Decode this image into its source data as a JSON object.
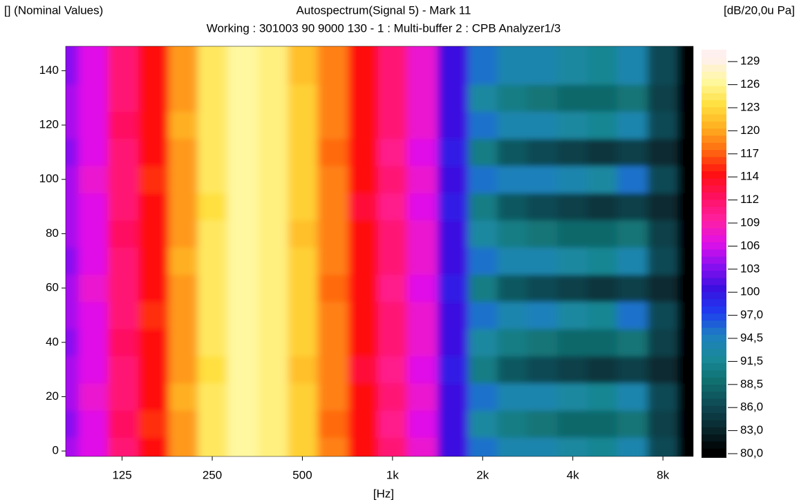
{
  "chart_data": {
    "type": "heatmap",
    "corner_label": "[] (Nominal Values)",
    "title": "Autospectrum(Signal 5) - Mark 11",
    "subtitle": "Working : 301003 90 9000 130 - 1 : Multi-buffer 2 : CPB Analyzer1/3",
    "unit_label": "[dB/20,0u Pa]",
    "x_label": "[Hz]",
    "log_x": true,
    "x": [
      80,
      100,
      125,
      160,
      200,
      250,
      315,
      400,
      500,
      630,
      800,
      1000,
      1250,
      1600,
      2000,
      2500,
      3150,
      4000,
      5000,
      6300,
      8000,
      10000
    ],
    "y": [
      0,
      10,
      20,
      30,
      40,
      50,
      60,
      70,
      80,
      90,
      100,
      110,
      120,
      130,
      140
    ],
    "xlim": [
      81,
      10100
    ],
    "ylim": [
      -2,
      149
    ],
    "xticks": [
      125,
      250,
      500,
      {
        "value": 1000,
        "label": "1k"
      },
      {
        "value": 2000,
        "label": "2k"
      },
      {
        "value": 4000,
        "label": "4k"
      },
      {
        "value": 8000,
        "label": "8k"
      }
    ],
    "yticks": [
      0,
      20,
      40,
      60,
      80,
      100,
      120,
      140
    ],
    "z": [
      [
        104,
        106,
        111,
        114,
        119,
        124,
        126,
        125,
        122,
        118,
        114,
        111,
        107,
        100,
        95,
        93,
        93,
        92,
        91,
        93,
        86,
        80
      ],
      [
        103,
        106,
        112,
        115,
        119,
        124,
        126,
        125,
        122,
        117,
        114,
        110,
        106,
        100,
        92,
        90,
        89,
        88,
        88,
        89,
        85,
        80
      ],
      [
        104,
        107,
        111,
        114,
        120,
        124,
        126,
        125,
        122,
        118,
        114,
        111,
        107,
        100,
        95,
        93,
        93,
        92,
        91,
        93,
        86,
        80
      ],
      [
        104,
        106,
        111,
        114,
        119,
        123,
        126,
        125,
        121,
        118,
        113,
        110,
        106,
        99,
        90,
        87,
        86,
        85,
        84,
        85,
        83,
        80
      ],
      [
        103,
        106,
        112,
        114,
        119,
        124,
        126,
        125,
        122,
        118,
        114,
        111,
        107,
        100,
        92,
        90,
        89,
        88,
        88,
        89,
        85,
        80
      ],
      [
        104,
        106,
        111,
        115,
        119,
        124,
        126,
        125,
        122,
        118,
        114,
        111,
        107,
        100,
        95,
        93,
        94,
        92,
        91,
        95,
        86,
        80
      ],
      [
        104,
        107,
        111,
        114,
        119,
        124,
        126,
        125,
        122,
        117,
        114,
        110,
        106,
        99,
        90,
        87,
        86,
        85,
        84,
        85,
        83,
        80
      ],
      [
        103,
        106,
        111,
        114,
        120,
        124,
        126,
        125,
        122,
        118,
        114,
        111,
        107,
        100,
        95,
        93,
        93,
        92,
        91,
        93,
        86,
        80
      ],
      [
        104,
        106,
        112,
        114,
        119,
        124,
        126,
        125,
        121,
        118,
        114,
        111,
        107,
        100,
        92,
        90,
        89,
        88,
        88,
        89,
        85,
        80
      ],
      [
        104,
        106,
        111,
        114,
        119,
        123,
        126,
        125,
        122,
        118,
        113,
        110,
        106,
        99,
        90,
        87,
        86,
        85,
        84,
        85,
        83,
        80
      ],
      [
        104,
        107,
        111,
        115,
        119,
        124,
        126,
        125,
        122,
        118,
        114,
        111,
        107,
        100,
        95,
        94,
        94,
        93,
        92,
        95,
        86,
        80
      ],
      [
        103,
        106,
        111,
        114,
        119,
        124,
        126,
        125,
        122,
        117,
        114,
        110,
        106,
        99,
        90,
        87,
        86,
        85,
        84,
        85,
        83,
        80
      ],
      [
        104,
        106,
        112,
        114,
        120,
        124,
        126,
        125,
        122,
        118,
        114,
        111,
        107,
        100,
        95,
        93,
        93,
        92,
        91,
        93,
        86,
        80
      ],
      [
        104,
        106,
        111,
        114,
        119,
        124,
        126,
        125,
        122,
        118,
        114,
        111,
        107,
        100,
        92,
        90,
        89,
        88,
        88,
        89,
        85,
        80
      ],
      [
        103,
        106,
        111,
        114,
        119,
        124,
        126,
        125,
        121,
        118,
        114,
        111,
        107,
        100,
        95,
        93,
        93,
        92,
        91,
        93,
        86,
        80
      ]
    ],
    "colorbar": {
      "ticks": [
        {
          "value": 80,
          "label": "80,0"
        },
        {
          "value": 83,
          "label": "83,0"
        },
        {
          "value": 86,
          "label": "86,0"
        },
        {
          "value": 88.5,
          "label": "88,5"
        },
        {
          "value": 91.5,
          "label": "91,5"
        },
        {
          "value": 94.5,
          "label": "94,5"
        },
        {
          "value": 97,
          "label": "97,0"
        },
        100,
        103,
        106,
        109,
        112,
        114,
        117,
        120,
        123,
        126,
        129
      ],
      "colors": [
        "#000000",
        "#0a2a30",
        "#0f4a55",
        "#107070",
        "#1a8a9a",
        "#1e7fc0",
        "#1f3cf0",
        "#3a10e0",
        "#8a10f0",
        "#e010e8",
        "#ff20a0",
        "#ff1060",
        "#ff1010",
        "#ff6a10",
        "#ffb020",
        "#ffe040",
        "#fff8a0",
        "#fff0f0"
      ]
    }
  }
}
